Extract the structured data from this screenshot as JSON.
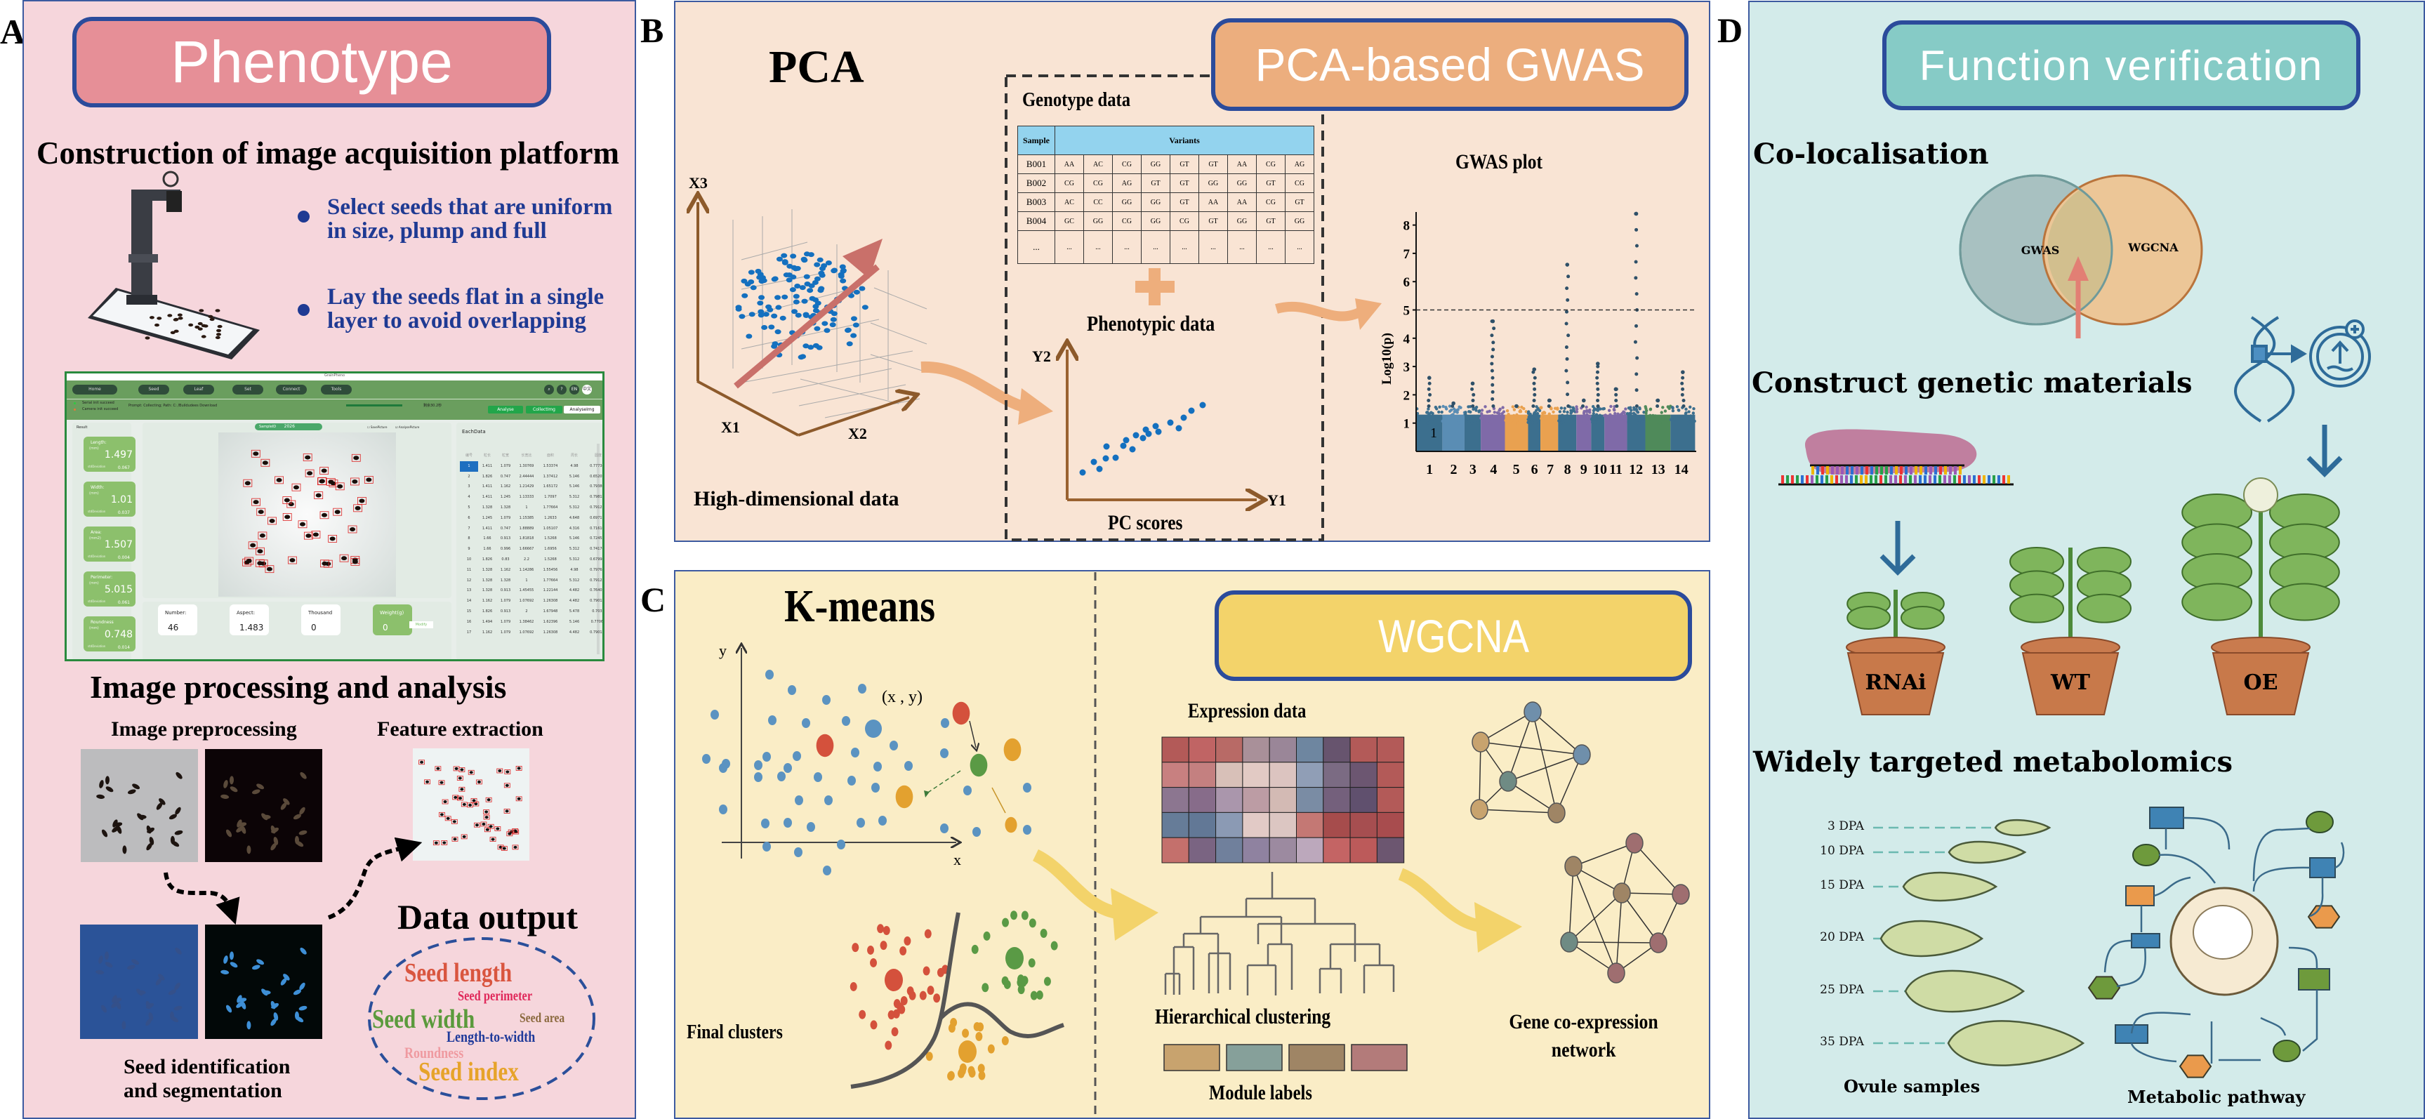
{
  "panel_labels": {
    "a": "A",
    "b": "B",
    "c": "C",
    "d": "D"
  },
  "panel_a": {
    "banner": "Phenotype",
    "platform_title": "Construction of image acquisition platform",
    "bullets": [
      {
        "line1": "Select seeds that are uniform",
        "line2": "in size, plump and full"
      },
      {
        "line1": "Lay the seeds flat in a single",
        "line2": "layer to avoid overlapping"
      }
    ],
    "processing_title": "Image processing and analysis",
    "preprocessing_label": "Image preprocessing",
    "feature_label": "Feature extraction",
    "segmentation_label_1": "Seed identification",
    "segmentation_label_2": "and segmentation",
    "output_title": "Data output",
    "word_cloud": {
      "seed_length": "Seed length",
      "seed_perimeter": "Seed perimeter",
      "seed_width": "Seed width",
      "seed_area": "Seed area",
      "length_to_width": "Length-to-width",
      "roundness": "Roundness",
      "seed_index": "Seed index"
    },
    "word_colors": {
      "seed_length": "#d9553f",
      "seed_perimeter": "#e0285a",
      "seed_width": "#5b9a3c",
      "seed_area": "#8b6a3f",
      "length_to_width": "#1f3a9a",
      "roundness": "#ef9aa0",
      "seed_index": "#e6a32a"
    }
  },
  "software": {
    "window_title": "GrainPheno",
    "nav": [
      "Home",
      "Seed",
      "Leaf",
      "Set",
      "Connect",
      "Tools"
    ],
    "lang": [
      "EN",
      "中文"
    ],
    "status": [
      "Serial init succeed",
      "Camera init succeed"
    ],
    "prompt": "Prompt: Collecting; Path: C: /Buildudees Download",
    "progress_fraction": 1.0,
    "progress_text": "剩余30.2秒",
    "buttons": [
      "Analyse",
      "CollectImg",
      "AnalyseImg"
    ],
    "result_label": "Result",
    "sample_label": "SampleID",
    "sample_id": "2026",
    "checkboxes": [
      "SavePicture",
      "AnalysePicture"
    ],
    "cards": [
      {
        "label": "Length:",
        "unit": "(mm)",
        "value": "1.497",
        "sd_label": "stdDeviation",
        "sd": "0.067"
      },
      {
        "label": "Width:",
        "unit": "(mm)",
        "value": "1.01",
        "sd_label": "stdDeviation",
        "sd": "0.037"
      },
      {
        "label": "Area:",
        "unit": "(mm2)",
        "value": "1.507",
        "sd_label": "stdDeviation",
        "sd": "0.004"
      },
      {
        "label": "Perimeter:",
        "unit": "(mm)",
        "value": "5.015",
        "sd_label": "stdDeviation",
        "sd": "0.061"
      },
      {
        "label": "Roundness",
        "unit": "(mm)",
        "value": "0.748",
        "sd_label": "stdDeviation",
        "sd": "0.014"
      }
    ],
    "summary": [
      {
        "label": "Number:",
        "value": "46"
      },
      {
        "label": "Aspect:",
        "value": "1.483"
      },
      {
        "label": "Thousand",
        "value": "0"
      },
      {
        "label": "Weight(g)",
        "value": "0"
      }
    ],
    "modify_label": "Modify",
    "table": {
      "title": "EachData",
      "headers": [
        "编号",
        "粒长",
        "粒宽",
        "长宽比",
        "面积",
        "周长",
        "圆度"
      ],
      "rows": [
        [
          "1",
          "1.411",
          "1.079",
          "1.30769",
          "1.53374",
          "4.98",
          "0.777347"
        ],
        [
          "2",
          "1.826",
          "0.747",
          "2.44444",
          "1.37412",
          "5.146",
          "0.652071"
        ],
        [
          "3",
          "1.411",
          "1.162",
          "1.21429",
          "1.65172",
          "5.146",
          "0.793803"
        ],
        [
          "4",
          "1.411",
          "1.245",
          "1.13333",
          "1.7097",
          "5.312",
          "0.798122"
        ],
        [
          "5",
          "1.328",
          "1.328",
          "1",
          "1.77664",
          "5.312",
          "0.791213"
        ],
        [
          "6",
          "1.245",
          "1.079",
          "1.15385",
          "1.2633",
          "4.648",
          "0.697176"
        ],
        [
          "7",
          "1.411",
          "0.747",
          "1.88889",
          "1.05107",
          "4.316",
          "0.716106"
        ],
        [
          "8",
          "1.66",
          "0.913",
          "1.81818",
          "1.5268",
          "5.146",
          "0.724524"
        ],
        [
          "9",
          "1.66",
          "0.996",
          "1.66667",
          "1.6956",
          "5.312",
          "0.741762"
        ],
        [
          "10",
          "1.826",
          "0.83",
          "2.2",
          "1.5268",
          "5.312",
          "0.679948"
        ],
        [
          "11",
          "1.328",
          "1.162",
          "1.14286",
          "1.55456",
          "4.98",
          "0.797686"
        ],
        [
          "12",
          "1.328",
          "1.328",
          "1",
          "1.77664",
          "5.312",
          "0.791213"
        ],
        [
          "13",
          "1.328",
          "0.913",
          "1.45455",
          "1.22144",
          "4.482",
          "0.764079"
        ],
        [
          "14",
          "1.162",
          "1.079",
          "1.07692",
          "1.26308",
          "4.482",
          "0.790127"
        ],
        [
          "15",
          "1.826",
          "0.913",
          "2",
          "1.67948",
          "5.478",
          "0.7033"
        ],
        [
          "16",
          "1.494",
          "1.079",
          "1.38462",
          "1.62396",
          "5.146",
          "0.77063"
        ],
        [
          "17",
          "1.162",
          "1.079",
          "1.07692",
          "1.26308",
          "4.482",
          "0.790127"
        ]
      ]
    }
  },
  "panel_b": {
    "pca_title": "PCA",
    "axes_3d": [
      "X3",
      "X1",
      "X2"
    ],
    "high_dim_label": "High-dimensional data",
    "banner": "PCA-based GWAS",
    "genotype_title": "Genotype data",
    "genotype_table": {
      "headers": [
        "Sample",
        "Variants"
      ],
      "rows": [
        [
          "B001",
          "AA",
          "AC",
          "CG",
          "GG",
          "GT",
          "GT",
          "AA",
          "CG",
          "AG"
        ],
        [
          "B002",
          "CG",
          "CG",
          "AG",
          "GT",
          "GT",
          "GG",
          "GG",
          "GT",
          "CG"
        ],
        [
          "B003",
          "AC",
          "CC",
          "GG",
          "GG",
          "GT",
          "AA",
          "AA",
          "CG",
          "GT"
        ],
        [
          "B004",
          "GC",
          "GG",
          "CG",
          "GG",
          "CG",
          "GT",
          "GG",
          "GT",
          "GG"
        ],
        [
          "...",
          "...",
          "...",
          "...",
          "...",
          "...",
          "...",
          "...",
          "...",
          "..."
        ]
      ]
    },
    "phenotypic_label": "Phenotypic data",
    "pc_axes": [
      "Y2",
      "Y1"
    ],
    "pc_scores_label": "PC scores",
    "gwas_title": "GWAS plot",
    "gwas_plot": {
      "ylabel": "Log10(p)",
      "y_ticks": [
        "1",
        "2",
        "3",
        "4",
        "5",
        "6",
        "7",
        "8"
      ],
      "chromosomes": [
        "1",
        "2",
        "3",
        "4",
        "5",
        "6",
        "7",
        "8",
        "9",
        "10",
        "11",
        "12",
        "13",
        "14"
      ],
      "threshold": 5,
      "peak_values": [
        2.6,
        1.7,
        2.4,
        4.6,
        1.6,
        2.9,
        1.8,
        6.6,
        1.8,
        3.1,
        2.2,
        8.4,
        1.8,
        2.8
      ],
      "chromosome_colors": [
        "#3c6f8e",
        "#5a8db4",
        "#3c6f8e",
        "#7f6aa8",
        "#e9a150",
        "#3c6f8e",
        "#e9a150",
        "#3c6f8e",
        "#7f6aa8",
        "#3c6f8e",
        "#7f6aa8",
        "#3c6f8e",
        "#4f8a5a",
        "#3c6f8e"
      ],
      "inner_label": "1"
    }
  },
  "panel_c": {
    "kmeans_title": "K-means",
    "axes": [
      "y",
      "x"
    ],
    "point_label": "(x , y)",
    "final_clusters_label": "Final clusters",
    "banner": "WGCNA",
    "expression_label": "Expression data",
    "hierarchical_label": "Hierarchical clustering",
    "module_labels_label": "Module labels",
    "module_colors": [
      "#c8a36e",
      "#86a09a",
      "#9f8565",
      "#b37b7a"
    ],
    "network_label_1": "Gene co-expression",
    "network_label_2": "network"
  },
  "panel_d": {
    "banner": "Function verification",
    "colocalisation_title": "Co-localisation",
    "venn": [
      "GWAS",
      "WGCNA"
    ],
    "construct_title": "Construct genetic materials",
    "pots": [
      "RNAi",
      "WT",
      "OE"
    ],
    "metabolomics_title": "Widely targeted metabolomics",
    "dpa": [
      "3 DPA",
      "10 DPA",
      "15 DPA",
      "20 DPA",
      "25 DPA",
      "35 DPA"
    ],
    "ovule_label": "Ovule samples",
    "pathway_label": "Metabolic pathway"
  }
}
